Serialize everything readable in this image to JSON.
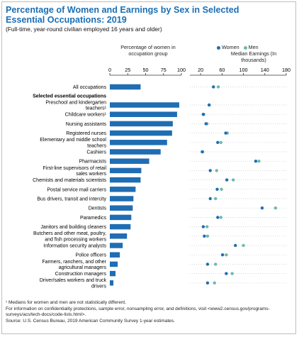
{
  "title": "Percentage of Women and Earnings by Sex in Selected Essential Occupations: 2019",
  "subtitle": "(Full-time, year-round civilian employed 16 years and older)",
  "pct_header": "Percentage of women in occupation group",
  "earnings_header": "Median Earnings (In thousands)",
  "legend": {
    "women": "Women",
    "men": "Men"
  },
  "colors": {
    "women": "#1f6db3",
    "men": "#6fb8ad",
    "bar": "#1f6db3",
    "grid": "#c8c8c8"
  },
  "section_label": "Selected essential occupations",
  "footnotes": [
    "¹ Medians for women and men are not statistically different.",
    "For information on confidentiality protections, sample error, nonsampling error, and definitions, visit <www2.census.gov/programs-surveys/acs/tech-docs/code-lists.html>.",
    "Source: U.S. Census Bureau, 2019 American Community Survey 1-year estimates."
  ],
  "chart_data": [
    {
      "type": "bar",
      "orientation": "horizontal",
      "xlabel": "Percentage of women in occupation group",
      "xlim": [
        0,
        100
      ],
      "xticks": [
        0,
        25,
        50,
        75,
        100
      ],
      "grid": false
    },
    {
      "type": "dot",
      "xlabel": "Median Earnings (In thousands)",
      "xlim": [
        0,
        180
      ],
      "xticks": [
        20,
        60,
        100,
        140,
        180
      ],
      "grid": true,
      "series_names": [
        "Women",
        "Men"
      ]
    }
  ],
  "rows": [
    {
      "label": "All occupations",
      "pct": 43,
      "women": 44,
      "men": 53
    },
    {
      "label": "Preschool and kindergarten teachers¹",
      "pct": 97,
      "women": 36,
      "men": 36
    },
    {
      "label": "Childcare workers¹",
      "pct": 94,
      "women": 25,
      "men": 26
    },
    {
      "label": "Nursing assistants",
      "pct": 88,
      "women": 30,
      "men": 32
    },
    {
      "label": "Registered nurses",
      "pct": 87,
      "women": 67,
      "men": 70
    },
    {
      "label": "Elementary and middle school teachers",
      "pct": 80,
      "women": 52,
      "men": 58
    },
    {
      "label": "Cashiers",
      "pct": 71,
      "women": 23,
      "men": 24
    },
    {
      "label": "Pharmacists",
      "pct": 55,
      "women": 123,
      "men": 129
    },
    {
      "label": "First-line supervisors of retail sales workers",
      "pct": 44,
      "women": 38,
      "men": 50
    },
    {
      "label": "Chemists and materials scientists",
      "pct": 43,
      "women": 69,
      "men": 81
    },
    {
      "label": "Postal service mail carriers",
      "pct": 36,
      "women": 51,
      "men": 59
    },
    {
      "label": "Bus drivers, transit and intercity",
      "pct": 33,
      "women": 38,
      "men": 48
    },
    {
      "label": "Dentists",
      "pct": 32,
      "women": 135,
      "men": 160
    },
    {
      "label": "Paramedics",
      "pct": 30,
      "women": 52,
      "men": 58
    },
    {
      "label": "Janitors and building cleaners",
      "pct": 29,
      "women": 25,
      "men": 32
    },
    {
      "label": "Butchers and other meat, poultry, and fish processing workers",
      "pct": 24,
      "women": 27,
      "men": 33
    },
    {
      "label": "Information security analysts",
      "pct": 18,
      "women": 85,
      "men": 100
    },
    {
      "label": "Police officers",
      "pct": 14,
      "women": 61,
      "men": 68
    },
    {
      "label": "Farmers, ranchers, and other agricultural managers",
      "pct": 11,
      "women": 33,
      "men": 48
    },
    {
      "label": "Construction managers",
      "pct": 8,
      "women": 68,
      "men": 79
    },
    {
      "label": "Driver/sales workers and truck drivers",
      "pct": 5,
      "women": 33,
      "men": 46
    }
  ]
}
